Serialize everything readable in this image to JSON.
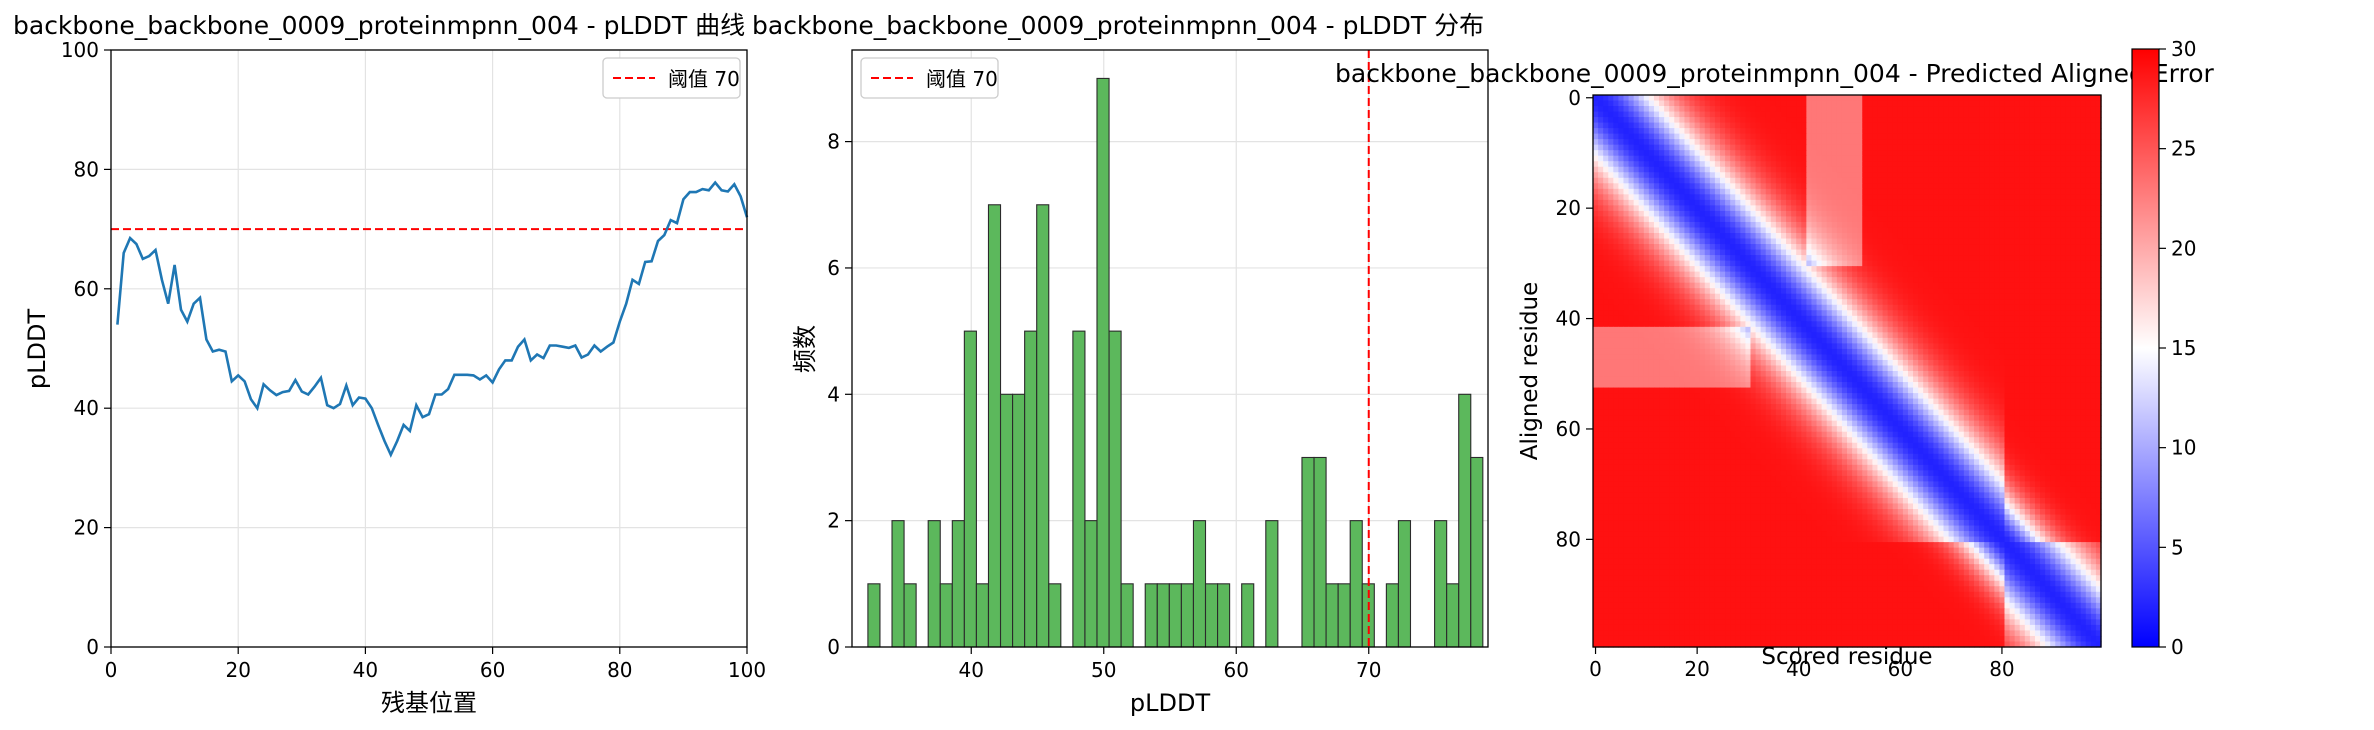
{
  "chart_data": [
    {
      "type": "line",
      "title": "backbone_backbone_0009_proteinmpnn_004 - pLDDT 曲线",
      "xlabel": "残基位置",
      "ylabel": "pLDDT",
      "xlim": [
        0,
        100
      ],
      "ylim": [
        0,
        100
      ],
      "xticks": [
        0,
        20,
        40,
        60,
        80,
        100
      ],
      "yticks": [
        0,
        20,
        40,
        60,
        80,
        100
      ],
      "grid": true,
      "legend": {
        "position": "top-right",
        "entries": [
          "阈值 70"
        ]
      },
      "threshold": {
        "label": "阈值 70",
        "value": 70,
        "color": "#ff0000"
      },
      "series": [
        {
          "color": "#1f77b4",
          "x": [
            1,
            2,
            3,
            4,
            5,
            6,
            7,
            8,
            9,
            10,
            11,
            12,
            13,
            14,
            15,
            16,
            17,
            18,
            19,
            20,
            21,
            22,
            23,
            24,
            25,
            26,
            27,
            28,
            29,
            30,
            31,
            32,
            33,
            34,
            35,
            36,
            37,
            38,
            39,
            40,
            41,
            42,
            43,
            44,
            45,
            46,
            47,
            48,
            49,
            50,
            51,
            52,
            53,
            54,
            55,
            56,
            57,
            58,
            59,
            60,
            61,
            62,
            63,
            64,
            65,
            66,
            67,
            68,
            69,
            70,
            71,
            72,
            73,
            74,
            75,
            76,
            77,
            78,
            79,
            80,
            81,
            82,
            83,
            84,
            85,
            86,
            87,
            88,
            89,
            90,
            91,
            92,
            93,
            94,
            95,
            96,
            97,
            98,
            99,
            100
          ],
          "values": [
            54,
            66,
            68.5,
            67.5,
            65,
            65.5,
            66.5,
            61.5,
            57.5,
            64,
            56.5,
            54.5,
            57.5,
            58.5,
            51.5,
            49.5,
            49.8,
            49.5,
            44.5,
            45.5,
            44.5,
            41.5,
            40,
            44,
            43,
            42.2,
            42.7,
            42.9,
            44.7,
            42.8,
            42.3,
            43.6,
            45.1,
            40.5,
            40,
            40.7,
            43.8,
            40.5,
            41.8,
            41.6,
            40,
            37.2,
            34.5,
            32.2,
            34.5,
            37.2,
            36.2,
            40.5,
            38.5,
            39,
            42.3,
            42.3,
            43.2,
            45.6,
            45.6,
            45.6,
            45.5,
            44.8,
            45.5,
            44.3,
            46.5,
            48,
            48,
            50.3,
            51.5,
            48,
            49,
            48.4,
            50.5,
            50.5,
            50.3,
            50.1,
            50.5,
            48.5,
            49,
            50.5,
            49.5,
            50.3,
            51,
            54.5,
            57.5,
            61.5,
            60.8,
            64.5,
            64.6,
            68,
            69,
            71.5,
            71,
            75,
            76.2,
            76.2,
            76.7,
            76.5,
            77.8,
            76.5,
            76.3,
            77.5,
            75.5,
            72
          ]
        }
      ]
    },
    {
      "type": "bar",
      "title": "backbone_backbone_0009_proteinmpnn_004 - pLDDT 分布",
      "xlabel": "pLDDT",
      "ylabel": "频数",
      "xlim": [
        31,
        79
      ],
      "ylim": [
        0,
        9.45
      ],
      "xticks": [
        40,
        50,
        60,
        70
      ],
      "yticks": [
        0,
        2,
        4,
        6,
        8
      ],
      "grid": true,
      "legend": {
        "position": "top-left",
        "entries": [
          "阈值 70"
        ]
      },
      "threshold": {
        "label": "阈值 70",
        "value": 70,
        "color": "#ff0000"
      },
      "bins": {
        "start": 32.2,
        "width": 0.91
      },
      "series": [
        {
          "color": "#5cb85c",
          "values": [
            1,
            0,
            2,
            1,
            0,
            2,
            1,
            2,
            5,
            1,
            7,
            4,
            4,
            5,
            7,
            1,
            0,
            5,
            2,
            9,
            5,
            1,
            0,
            1,
            1,
            1,
            1,
            2,
            1,
            1,
            0,
            1,
            0,
            2,
            0,
            0,
            3,
            3,
            1,
            1,
            2,
            1,
            0,
            1,
            2,
            0,
            0,
            2,
            1,
            4,
            3
          ]
        }
      ]
    },
    {
      "type": "heatmap",
      "title": "backbone_backbone_0009_proteinmpnn_004 - Predicted Aligned Error",
      "xlabel": "Scored residue",
      "ylabel": "Aligned residue",
      "xticks": [
        0,
        20,
        40,
        60,
        80
      ],
      "yticks": [
        0,
        20,
        40,
        60,
        80
      ],
      "n": 100,
      "colormap": [
        "#0000ff",
        "#ffffff",
        "#ff0000"
      ],
      "colorbar": {
        "min": 0,
        "max": 30,
        "ticks": [
          0,
          5,
          10,
          15,
          20,
          25,
          30
        ]
      }
    }
  ]
}
